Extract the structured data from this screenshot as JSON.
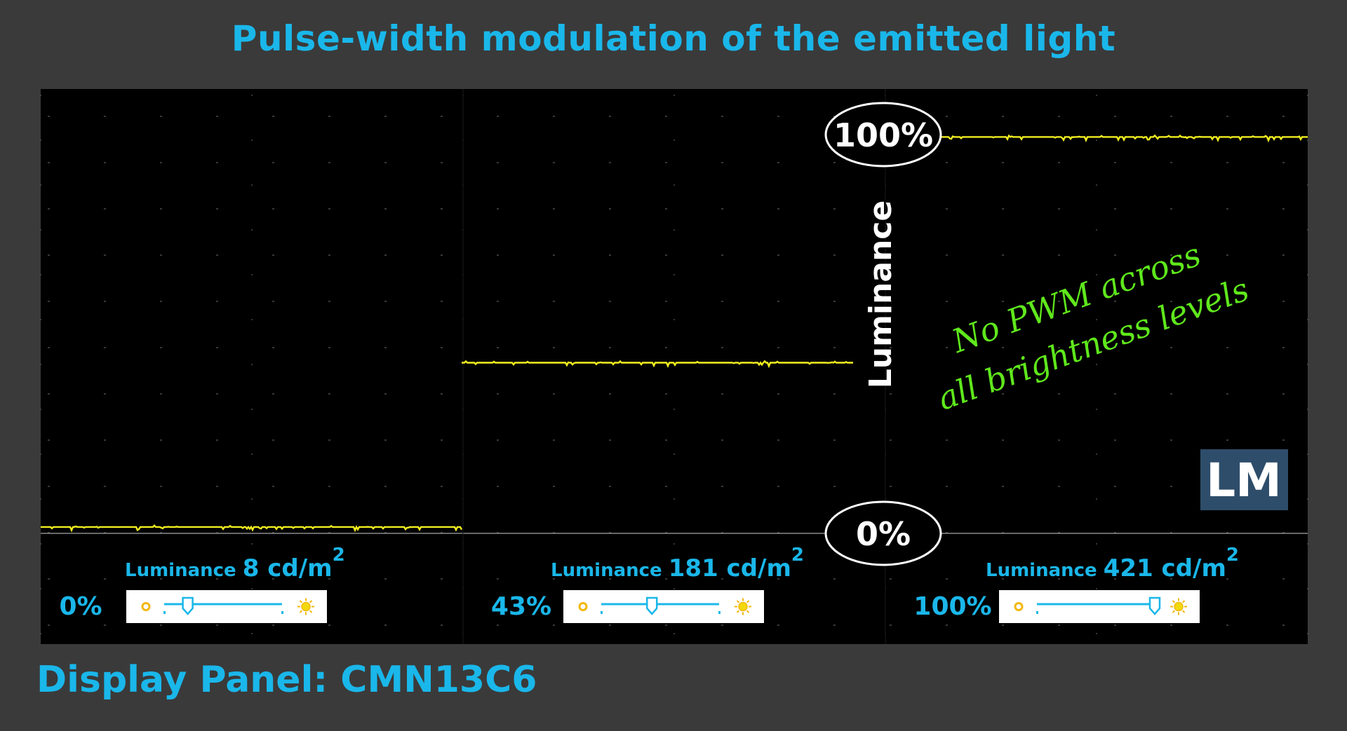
{
  "title": "Pulse-width modulation of the emitted light",
  "footer": "Display Panel: CMN13C6",
  "annotation": {
    "line1": "No PWM across",
    "line2": "all brightness levels"
  },
  "logo": "LM",
  "colors": {
    "accent": "#1ab7ea",
    "trace": "#f2ef1f",
    "annotation": "#5fe81c",
    "background": "#3a3a3a",
    "scope": "#000000",
    "logo_bg": "#2e4d6a"
  },
  "chart_data": {
    "type": "line",
    "title": "Pulse-width modulation of the emitted light",
    "ylabel": "Luminance",
    "xlabel": "",
    "ylim": [
      0,
      100
    ],
    "y_markers": [
      {
        "label": "100%",
        "value": 100
      },
      {
        "label": "0%",
        "value": 0
      }
    ],
    "grid": true,
    "series": [
      {
        "brightness_label": "0%",
        "luminance_value": "8",
        "luminance_unit": "cd/m",
        "unit_exp": "2",
        "luminance_prefix": "Luminance",
        "slider_position": 0.2,
        "level": 1.6
      },
      {
        "brightness_label": "43%",
        "luminance_value": "181",
        "luminance_unit": "cd/m",
        "unit_exp": "2",
        "luminance_prefix": "Luminance",
        "slider_position": 0.43,
        "level": 42.8
      },
      {
        "brightness_label": "100%",
        "luminance_value": "421",
        "luminance_unit": "cd/m",
        "unit_exp": "2",
        "luminance_prefix": "Luminance",
        "slider_position": 1.0,
        "level": 99.4
      }
    ]
  }
}
